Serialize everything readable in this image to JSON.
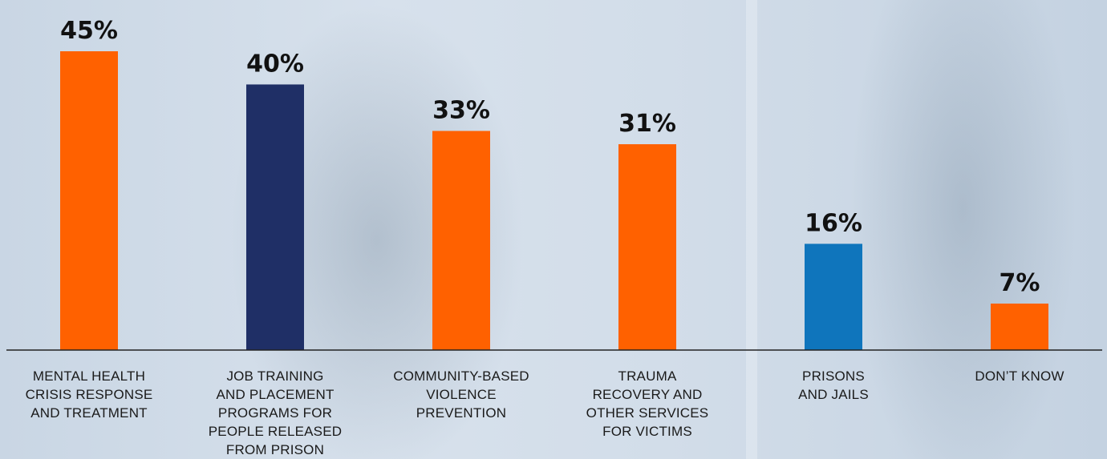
{
  "chart_data": {
    "type": "bar",
    "categories": [
      [
        "MENTAL HEALTH",
        "CRISIS RESPONSE",
        "AND TREATMENT"
      ],
      [
        "JOB TRAINING",
        "AND PLACEMENT",
        "PROGRAMS FOR",
        "PEOPLE RELEASED",
        "FROM PRISON"
      ],
      [
        "COMMUNITY-BASED",
        "VIOLENCE",
        "PREVENTION"
      ],
      [
        "TRAUMA",
        "RECOVERY AND",
        "OTHER SERVICES",
        "FOR VICTIMS"
      ],
      [
        "PRISONS",
        "AND JAILS"
      ],
      [
        "DON’T KNOW"
      ]
    ],
    "values": [
      45,
      40,
      33,
      31,
      16,
      7
    ],
    "value_labels": [
      "45%",
      "40%",
      "33%",
      "31%",
      "16%",
      "7%"
    ],
    "bar_colors": [
      "#ff6100",
      "#1f2f66",
      "#ff6100",
      "#ff6100",
      "#0f75bc",
      "#ff6100"
    ],
    "ylim": [
      0,
      45
    ],
    "grid": false,
    "legend": "none"
  }
}
